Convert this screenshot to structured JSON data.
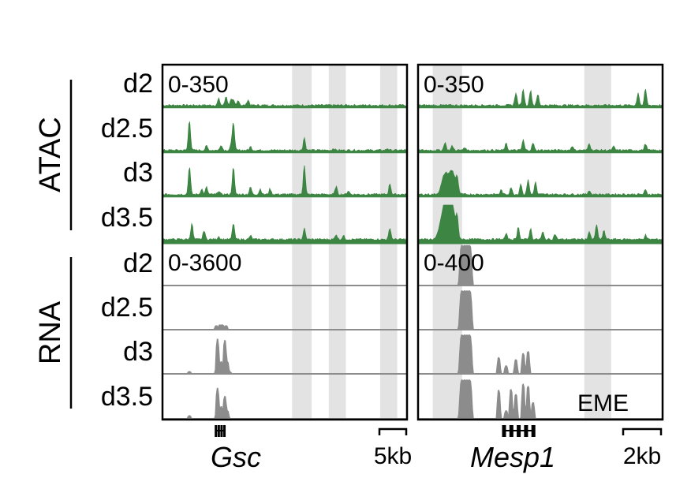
{
  "chart_data": {
    "type": "area",
    "colors": {
      "atac": "#3d8543",
      "rna": "#8c8c8c",
      "highlight": "#e3e3e3",
      "frame": "#000000"
    },
    "groups": [
      {
        "label": "ATAC",
        "samples": [
          "d2",
          "d2.5",
          "d3",
          "d3.5"
        ]
      },
      {
        "label": "RNA",
        "samples": [
          "d2",
          "d2.5",
          "d3",
          "d3.5"
        ]
      }
    ],
    "panels": [
      {
        "gene": "Gsc",
        "scale_bar": "5kb",
        "atac_range": "0-350",
        "rna_range": "0-3600",
        "annotation": "",
        "highlight_regions": [
          [
            0.53,
            0.61
          ],
          [
            0.68,
            0.75
          ],
          [
            0.89,
            0.96
          ]
        ],
        "gene_position": [
          0.22,
          0.255
        ],
        "atac_peaks": [
          [
            [
              0.23,
              0.18
            ],
            [
              0.26,
              0.25
            ],
            [
              0.28,
              0.15
            ],
            [
              0.29,
              0.12
            ],
            [
              0.31,
              0.14
            ],
            [
              0.35,
              0.15
            ]
          ],
          [
            [
              0.11,
              0.85
            ],
            [
              0.18,
              0.12
            ],
            [
              0.24,
              0.15
            ],
            [
              0.28,
              0.12
            ],
            [
              0.29,
              0.8
            ],
            [
              0.36,
              0.1
            ],
            [
              0.58,
              0.35
            ],
            [
              0.7,
              0.05
            ],
            [
              0.92,
              0.05
            ]
          ],
          [
            [
              0.11,
              0.78
            ],
            [
              0.16,
              0.15
            ],
            [
              0.18,
              0.2
            ],
            [
              0.23,
              0.1
            ],
            [
              0.29,
              0.75
            ],
            [
              0.36,
              0.2
            ],
            [
              0.4,
              0.15
            ],
            [
              0.44,
              0.15
            ],
            [
              0.58,
              0.82
            ],
            [
              0.71,
              0.22
            ],
            [
              0.76,
              0.1
            ],
            [
              0.93,
              0.3
            ]
          ],
          [
            [
              0.12,
              0.45
            ],
            [
              0.17,
              0.25
            ],
            [
              0.23,
              0.08
            ],
            [
              0.29,
              0.45
            ],
            [
              0.36,
              0.1
            ],
            [
              0.58,
              0.3
            ],
            [
              0.71,
              0.14
            ],
            [
              0.74,
              0.1
            ],
            [
              0.93,
              0.32
            ]
          ]
        ],
        "rna_profiles": [
          [],
          [
            [
              0.22,
              0.1
            ],
            [
              0.235,
              0.12
            ],
            [
              0.245,
              0.12
            ],
            [
              0.26,
              0.1
            ]
          ],
          [
            [
              0.11,
              0.06
            ],
            [
              0.225,
              0.85
            ],
            [
              0.24,
              0.3
            ],
            [
              0.255,
              0.82
            ],
            [
              0.265,
              0.3
            ],
            [
              0.275,
              0.05
            ]
          ],
          [
            [
              0.11,
              0.08
            ],
            [
              0.225,
              0.75
            ],
            [
              0.24,
              0.3
            ],
            [
              0.255,
              0.55
            ],
            [
              0.265,
              0.2
            ]
          ]
        ]
      },
      {
        "gene": "Mesp1",
        "scale_bar": "2kb",
        "atac_range": "0-350",
        "rna_range": "0-400",
        "annotation": "EME",
        "highlight_regions": [
          [
            0.06,
            0.18
          ],
          [
            0.68,
            0.79
          ]
        ],
        "gene_position": [
          0.35,
          0.47
        ],
        "atac_peaks": [
          [
            [
              0.4,
              0.35
            ],
            [
              0.43,
              0.45
            ],
            [
              0.46,
              0.42
            ],
            [
              0.49,
              0.3
            ],
            [
              0.9,
              0.35
            ],
            [
              0.93,
              0.45
            ]
          ],
          [
            [
              0.11,
              0.22
            ],
            [
              0.14,
              0.12
            ],
            [
              0.19,
              0.08
            ],
            [
              0.36,
              0.18
            ],
            [
              0.43,
              0.28
            ],
            [
              0.47,
              0.2
            ],
            [
              0.63,
              0.12
            ],
            [
              0.7,
              0.2
            ],
            [
              0.8,
              0.1
            ],
            [
              0.93,
              0.18
            ]
          ],
          [
            [
              0.11,
              0.55
            ],
            [
              0.14,
              0.62
            ],
            [
              0.16,
              0.35
            ],
            [
              0.34,
              0.12
            ],
            [
              0.38,
              0.2
            ],
            [
              0.42,
              0.3
            ],
            [
              0.45,
              0.42
            ],
            [
              0.48,
              0.35
            ],
            [
              0.7,
              0.12
            ],
            [
              0.93,
              0.12
            ]
          ],
          [
            [
              0.1,
              0.55
            ],
            [
              0.12,
              0.85
            ],
            [
              0.14,
              0.8
            ],
            [
              0.16,
              0.45
            ],
            [
              0.36,
              0.15
            ],
            [
              0.41,
              0.35
            ],
            [
              0.46,
              0.3
            ],
            [
              0.51,
              0.2
            ],
            [
              0.56,
              0.15
            ],
            [
              0.7,
              0.22
            ],
            [
              0.73,
              0.42
            ],
            [
              0.76,
              0.25
            ],
            [
              0.93,
              0.12
            ]
          ]
        ],
        "rna_profiles": [
          [
            [
              0.18,
              0.98
            ],
            [
              0.19,
              0.98
            ],
            [
              0.2,
              0.98
            ],
            [
              0.21,
              0.98
            ]
          ],
          [
            [
              0.18,
              0.95
            ],
            [
              0.19,
              0.95
            ],
            [
              0.2,
              0.95
            ],
            [
              0.21,
              0.95
            ]
          ],
          [
            [
              0.18,
              0.95
            ],
            [
              0.19,
              0.95
            ],
            [
              0.2,
              0.95
            ],
            [
              0.21,
              0.95
            ],
            [
              0.33,
              0.4
            ],
            [
              0.36,
              0.2
            ],
            [
              0.4,
              0.35
            ],
            [
              0.43,
              0.5
            ],
            [
              0.45,
              0.55
            ]
          ],
          [
            [
              0.18,
              0.95
            ],
            [
              0.19,
              0.95
            ],
            [
              0.2,
              0.95
            ],
            [
              0.21,
              0.95
            ],
            [
              0.33,
              0.7
            ],
            [
              0.36,
              0.2
            ],
            [
              0.38,
              0.72
            ],
            [
              0.4,
              0.6
            ],
            [
              0.43,
              0.85
            ],
            [
              0.45,
              0.8
            ],
            [
              0.47,
              0.4
            ]
          ]
        ]
      }
    ]
  }
}
